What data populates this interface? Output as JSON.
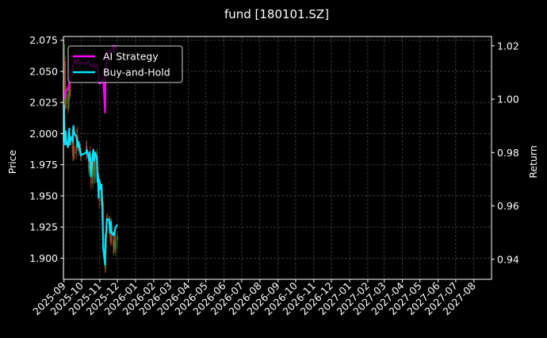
{
  "chart_data": {
    "type": "line",
    "title": "fund [180101.SZ]",
    "xlabel": "",
    "ylabel": "Price",
    "ylabel_right": "Return",
    "background": "#000000",
    "grid": true,
    "legend_position": "top-left",
    "x_tick_labels": [
      "2025-09",
      "2025-10",
      "2025-11",
      "2025-12",
      "2026-01",
      "2026-02",
      "2026-03",
      "2026-04",
      "2026-05",
      "2026-06",
      "2026-07",
      "2026-08",
      "2026-09",
      "2026-10",
      "2026-11",
      "2026-12",
      "2027-01",
      "2027-02",
      "2027-03",
      "2027-04",
      "2027-05",
      "2027-06",
      "2027-07",
      "2027-08"
    ],
    "xlim": [
      "2025-08-31",
      "2027-08-31"
    ],
    "left_axis": {
      "ylim": [
        1.883,
        2.078
      ],
      "ticks": [
        "1.900",
        "1.925",
        "1.950",
        "1.975",
        "2.000",
        "2.025",
        "2.050",
        "2.075"
      ]
    },
    "right_axis": {
      "ylim": [
        0.9325,
        1.0235
      ],
      "ticks": [
        "0.94",
        "0.96",
        "0.98",
        "1.00",
        "1.02"
      ]
    },
    "candles": {
      "up_color": "#2e8b2e",
      "down_color": "#cc2a2a",
      "values": [
        [
          "2025-09-01",
          2.018,
          2.032,
          2.012,
          2.025
        ],
        [
          "2025-09-02",
          2.025,
          2.072,
          2.02,
          2.058
        ],
        [
          "2025-09-03",
          2.058,
          2.062,
          2.02,
          2.028
        ],
        [
          "2025-09-04",
          2.028,
          2.034,
          2.018,
          2.024
        ],
        [
          "2025-09-05",
          2.024,
          2.038,
          2.02,
          2.032
        ],
        [
          "2025-09-08",
          2.032,
          2.034,
          2.016,
          2.02
        ],
        [
          "2025-09-09",
          2.02,
          2.036,
          2.018,
          2.03
        ],
        [
          "2025-09-10",
          2.03,
          2.052,
          2.026,
          2.044
        ],
        [
          "2025-09-11",
          2.044,
          2.05,
          2.03,
          2.036
        ],
        [
          "2025-09-12",
          2.036,
          2.04,
          2.028,
          2.034
        ],
        [
          "2025-09-15",
          2.0,
          2.004,
          1.985,
          1.99
        ],
        [
          "2025-09-16",
          1.99,
          1.994,
          1.978,
          1.982
        ],
        [
          "2025-09-17",
          1.982,
          1.996,
          1.978,
          1.99
        ],
        [
          "2025-09-18",
          1.99,
          1.993,
          1.98,
          1.985
        ],
        [
          "2025-09-19",
          1.985,
          1.99,
          1.979,
          1.984
        ],
        [
          "2025-09-22",
          1.984,
          1.996,
          1.98,
          1.992
        ],
        [
          "2025-09-23",
          1.992,
          2.004,
          1.986,
          1.998
        ],
        [
          "2025-09-24",
          1.998,
          2.006,
          1.99,
          1.995
        ],
        [
          "2025-09-25",
          1.995,
          1.998,
          1.986,
          1.99
        ],
        [
          "2025-09-26",
          1.99,
          1.994,
          1.982,
          1.986
        ],
        [
          "2025-09-29",
          1.986,
          1.992,
          1.979,
          1.982
        ],
        [
          "2025-09-30",
          1.982,
          1.988,
          1.978,
          1.984
        ],
        [
          "2025-10-09",
          1.984,
          1.994,
          1.98,
          1.99
        ],
        [
          "2025-10-10",
          1.99,
          1.995,
          1.978,
          1.982
        ],
        [
          "2025-10-13",
          1.982,
          1.986,
          1.968,
          1.972
        ],
        [
          "2025-10-14",
          1.972,
          1.98,
          1.966,
          1.975
        ],
        [
          "2025-10-15",
          1.975,
          1.986,
          1.97,
          1.982
        ],
        [
          "2025-10-16",
          1.982,
          1.99,
          1.972,
          1.976
        ],
        [
          "2025-10-17",
          1.976,
          1.98,
          1.955,
          1.96
        ],
        [
          "2025-10-20",
          1.96,
          1.974,
          1.956,
          1.97
        ],
        [
          "2025-10-21",
          1.97,
          1.982,
          1.966,
          1.978
        ],
        [
          "2025-10-22",
          1.978,
          1.988,
          1.97,
          1.975
        ],
        [
          "2025-10-23",
          1.975,
          1.978,
          1.96,
          1.964
        ],
        [
          "2025-10-24",
          1.964,
          1.982,
          1.96,
          1.978
        ],
        [
          "2025-10-27",
          1.978,
          1.988,
          1.972,
          1.982
        ],
        [
          "2025-10-28",
          1.982,
          1.986,
          1.97,
          1.974
        ],
        [
          "2025-10-29",
          1.974,
          1.978,
          1.95,
          1.955
        ],
        [
          "2025-10-30",
          1.955,
          1.966,
          1.952,
          1.962
        ],
        [
          "2025-10-31",
          1.962,
          1.964,
          1.94,
          1.946
        ],
        [
          "2025-11-03",
          1.946,
          1.955,
          1.942,
          1.952
        ],
        [
          "2025-11-04",
          1.952,
          1.958,
          1.944,
          1.95
        ],
        [
          "2025-11-05",
          1.95,
          1.952,
          1.928,
          1.932
        ],
        [
          "2025-11-06",
          1.932,
          1.948,
          1.928,
          1.944
        ],
        [
          "2025-11-07",
          1.944,
          1.946,
          1.906,
          1.912
        ],
        [
          "2025-11-10",
          1.912,
          1.916,
          1.888,
          1.892
        ],
        [
          "2025-11-11",
          1.892,
          1.912,
          1.889,
          1.908
        ],
        [
          "2025-11-12",
          1.908,
          1.926,
          1.904,
          1.922
        ],
        [
          "2025-11-13",
          1.922,
          1.935,
          1.916,
          1.932
        ],
        [
          "2025-11-14",
          1.932,
          1.936,
          1.922,
          1.928
        ],
        [
          "2025-11-17",
          1.928,
          1.934,
          1.92,
          1.93
        ],
        [
          "2025-11-18",
          1.93,
          1.934,
          1.918,
          1.922
        ],
        [
          "2025-11-19",
          1.922,
          1.926,
          1.91,
          1.914
        ],
        [
          "2025-11-20",
          1.914,
          1.932,
          1.912,
          1.928
        ],
        [
          "2025-11-21",
          1.928,
          1.932,
          1.91,
          1.914
        ],
        [
          "2025-11-24",
          1.914,
          1.92,
          1.904,
          1.91
        ],
        [
          "2025-11-25",
          1.91,
          1.916,
          1.902,
          1.912
        ],
        [
          "2025-11-26",
          1.912,
          1.92,
          1.906,
          1.916
        ],
        [
          "2025-11-27",
          1.916,
          1.92,
          1.904,
          1.908
        ],
        [
          "2025-11-28",
          1.908,
          1.918,
          1.902,
          1.914
        ],
        [
          "2025-12-01",
          1.914,
          1.92,
          1.906,
          1.918
        ]
      ]
    },
    "series": [
      {
        "name": "AI Strategy",
        "axis": "right",
        "color": "#ff00ff",
        "x": [
          "2025-09-01",
          "2025-09-02",
          "2025-09-03",
          "2025-09-04",
          "2025-09-05",
          "2025-09-08",
          "2025-09-09",
          "2025-09-10",
          "2025-09-11",
          "2025-09-12",
          "2025-09-15",
          "2025-09-16",
          "2025-09-17",
          "2025-09-18",
          "2025-09-19",
          "2025-09-22",
          "2025-09-23",
          "2025-09-24",
          "2025-09-25",
          "2025-09-26",
          "2025-09-29",
          "2025-09-30",
          "2025-10-09",
          "2025-10-10",
          "2025-10-13",
          "2025-10-14",
          "2025-10-15",
          "2025-10-16",
          "2025-10-17",
          "2025-10-20",
          "2025-10-21",
          "2025-10-22",
          "2025-10-23",
          "2025-10-24",
          "2025-10-27",
          "2025-10-28",
          "2025-10-29",
          "2025-10-30",
          "2025-10-31",
          "2025-11-03",
          "2025-11-04",
          "2025-11-05",
          "2025-11-06",
          "2025-11-07",
          "2025-11-10",
          "2025-11-11",
          "2025-11-12",
          "2025-11-13",
          "2025-11-14",
          "2025-11-17",
          "2025-11-18",
          "2025-11-19",
          "2025-11-20",
          "2025-11-21",
          "2025-11-24",
          "2025-11-25",
          "2025-11-26",
          "2025-11-27",
          "2025-11-28",
          "2025-12-01"
        ],
        "values": [
          1.0,
          1.001,
          1.002,
          1.003,
          1.003,
          1.004,
          1.005,
          1.006,
          1.007,
          1.008,
          1.009,
          1.012,
          1.013,
          1.014,
          1.015,
          1.014,
          1.013,
          1.014,
          1.015,
          1.014,
          1.013,
          1.014,
          1.013,
          1.014,
          1.014,
          1.014,
          1.013,
          1.013,
          1.012,
          1.013,
          1.013,
          1.012,
          1.013,
          1.012,
          1.013,
          1.012,
          1.01,
          1.008,
          1.006,
          1.006,
          1.007,
          1.007,
          1.007,
          1.008,
          0.995,
          1.01,
          1.013,
          1.016,
          1.017,
          1.018,
          1.017,
          1.018,
          1.019,
          1.019,
          1.02,
          1.018,
          1.019,
          1.02,
          1.019,
          1.02
        ]
      },
      {
        "name": "Buy-and-Hold",
        "axis": "right",
        "color": "#00e5ff",
        "x": [
          "2025-09-01",
          "2025-09-02",
          "2025-09-03",
          "2025-09-04",
          "2025-09-05",
          "2025-09-08",
          "2025-09-09",
          "2025-09-10",
          "2025-09-11",
          "2025-09-12",
          "2025-09-15",
          "2025-09-16",
          "2025-09-17",
          "2025-09-18",
          "2025-09-19",
          "2025-09-22",
          "2025-09-23",
          "2025-09-24",
          "2025-09-25",
          "2025-09-26",
          "2025-09-29",
          "2025-09-30",
          "2025-10-09",
          "2025-10-10",
          "2025-10-13",
          "2025-10-14",
          "2025-10-15",
          "2025-10-16",
          "2025-10-17",
          "2025-10-20",
          "2025-10-21",
          "2025-10-22",
          "2025-10-23",
          "2025-10-24",
          "2025-10-27",
          "2025-10-28",
          "2025-10-29",
          "2025-10-30",
          "2025-10-31",
          "2025-11-03",
          "2025-11-04",
          "2025-11-05",
          "2025-11-06",
          "2025-11-07",
          "2025-11-10",
          "2025-11-11",
          "2025-11-12",
          "2025-11-13",
          "2025-11-14",
          "2025-11-17",
          "2025-11-18",
          "2025-11-19",
          "2025-11-20",
          "2025-11-21",
          "2025-11-24",
          "2025-11-25",
          "2025-11-26",
          "2025-11-27",
          "2025-11-28",
          "2025-12-01"
        ],
        "values": [
          0.998,
          0.985,
          0.983,
          0.988,
          0.984,
          0.982,
          0.986,
          0.989,
          0.983,
          0.985,
          0.986,
          0.984,
          0.99,
          0.988,
          0.987,
          0.986,
          0.985,
          0.983,
          0.982,
          0.984,
          0.98,
          0.979,
          0.98,
          0.981,
          0.978,
          0.977,
          0.98,
          0.977,
          0.971,
          0.979,
          0.981,
          0.979,
          0.977,
          0.98,
          0.978,
          0.969,
          0.972,
          0.963,
          0.97,
          0.966,
          0.968,
          0.963,
          0.953,
          0.944,
          0.938,
          0.949,
          0.95,
          0.955,
          0.955,
          0.955,
          0.952,
          0.95,
          0.954,
          0.95,
          0.949,
          0.95,
          0.949,
          0.951,
          0.952,
          0.953
        ]
      }
    ]
  }
}
